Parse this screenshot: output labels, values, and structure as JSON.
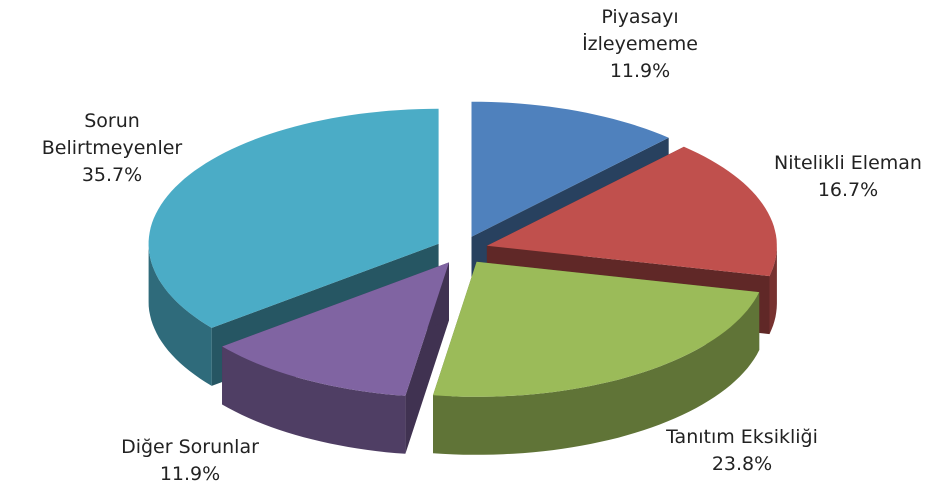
{
  "chart_data": {
    "type": "pie3d",
    "categories": [
      "Piyasayı İzleyememe",
      "Nitelikli Eleman",
      "Tanıtım Eksikliği",
      "Diğer Sorunlar",
      "Sorun Belirtmeyenler"
    ],
    "values": [
      11.9,
      16.7,
      23.8,
      11.9,
      35.7
    ],
    "value_labels": [
      "11.9%",
      "16.7%",
      "23.8%",
      "11.9%",
      "35.7%"
    ],
    "colors": [
      "#4f81bd",
      "#c0504d",
      "#9bbb59",
      "#8064a2",
      "#4bacc6"
    ]
  }
}
